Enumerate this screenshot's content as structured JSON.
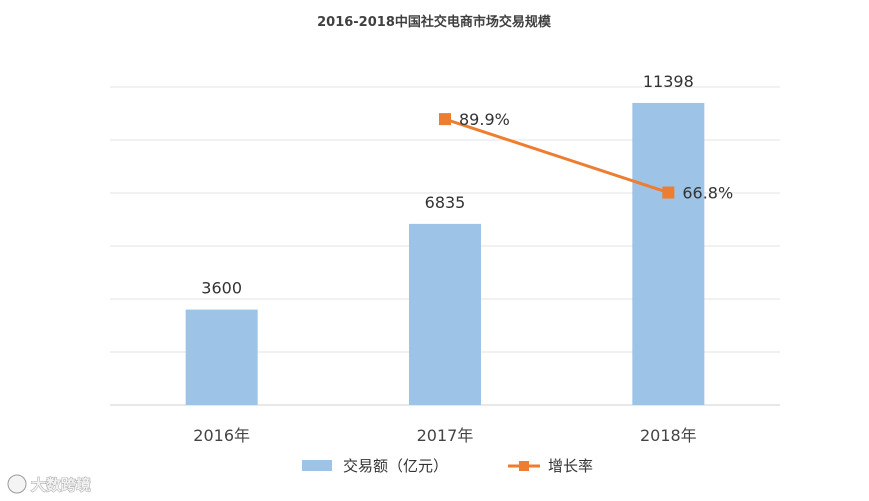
{
  "chart_data": {
    "type": "bar",
    "title": "2016-2018中国社交电商市场交易规模",
    "categories": [
      "2016年",
      "2017年",
      "2018年"
    ],
    "series": [
      {
        "name": "交易额（亿元）",
        "type": "bar",
        "color": "#9dc3e6",
        "values": [
          3600,
          6835,
          11398
        ],
        "labels": [
          "3600",
          "6835",
          "11398"
        ]
      },
      {
        "name": "增长率",
        "type": "line",
        "color": "#ed7d31",
        "values": [
          null,
          89.9,
          66.8
        ],
        "labels": [
          "",
          "89.9%",
          "66.8%"
        ]
      }
    ],
    "ylim": [
      0,
      12000
    ],
    "y2lim": [
      0,
      100
    ],
    "grid": true,
    "legend": "bottom"
  },
  "watermark": {
    "text": "大数跨境"
  }
}
